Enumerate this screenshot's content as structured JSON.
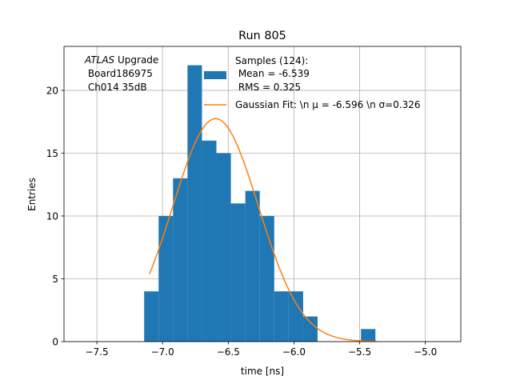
{
  "chart_data": {
    "type": "bar",
    "title": "Run 805",
    "xlabel": "time [ns]",
    "ylabel": "Entries",
    "xlim": [
      -7.75,
      -4.73
    ],
    "ylim": [
      0,
      23.5
    ],
    "grid": true,
    "xticks": [
      -7.5,
      -7.0,
      -6.5,
      -6.0,
      -5.5,
      -5.0
    ],
    "xtick_labels": [
      "−7.5",
      "−7.0",
      "−6.5",
      "−6.0",
      "−5.5",
      "−5.0"
    ],
    "yticks": [
      0,
      5,
      10,
      15,
      20
    ],
    "ytick_labels": [
      "0",
      "5",
      "10",
      "15",
      "20"
    ],
    "annotation_lines": [
      "ATLAS Upgrade",
      " Board186975",
      " Ch014 35dB"
    ],
    "annotation_italic_word": "ATLAS",
    "histogram": {
      "bin_edges": [
        -7.14,
        -7.03,
        -6.92,
        -6.81,
        -6.7,
        -6.59,
        -6.48,
        -6.37,
        -6.26,
        -6.15,
        -6.04,
        -5.93,
        -5.82,
        -5.71,
        -5.6,
        -5.49,
        -5.38,
        -5.27
      ],
      "counts": [
        4,
        10,
        13,
        22,
        16,
        15,
        11,
        12,
        10,
        4,
        4,
        2,
        0,
        0,
        0,
        1,
        0
      ],
      "color": "#1f77b4"
    },
    "fit": {
      "mu": -6.596,
      "sigma": 0.326,
      "amplitude": 17.75,
      "x_range": [
        -7.1,
        -5.37
      ],
      "color": "#ff7f0e"
    },
    "legend": {
      "placement": "upper-right",
      "samples_lines": [
        "Samples (124):",
        " Mean = -6.539",
        " RMS = 0.325"
      ],
      "fit_label": "Gaussian Fit: \\n μ = -6.596 \\n σ=0.326"
    }
  }
}
